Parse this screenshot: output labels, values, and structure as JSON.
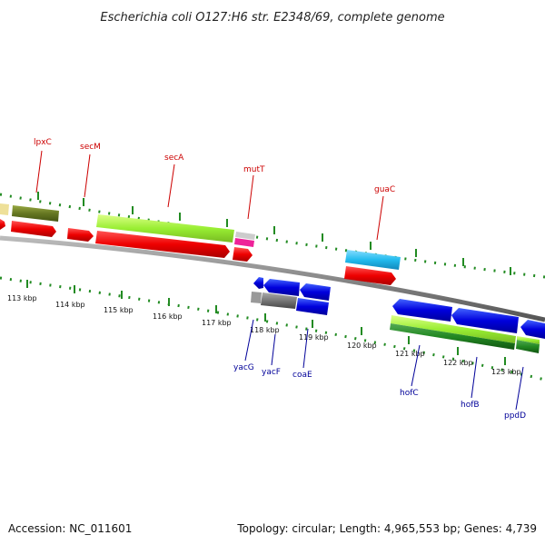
{
  "title": "Escherichia coli O127:H6 str. E2348/69, complete genome",
  "footer": {
    "accession": "Accession: NC_011601",
    "topology": "Topology: circular; Length: 4,965,553 bp; Genes: 4,739"
  },
  "scale_labels": [
    "113 kbp",
    "114 kbp",
    "115 kbp",
    "116 kbp",
    "117 kbp",
    "118 kbp",
    "119 kbp",
    "120 kbp",
    "121 kbp",
    "122 kbp",
    "123 kbp"
  ],
  "top_gene_labels": [
    "lpxC",
    "secM",
    "secA",
    "mutT",
    "guaC"
  ],
  "bottom_gene_labels": [
    "yacG",
    "yacF",
    "coaE",
    "hofC",
    "hofB",
    "ppdD"
  ],
  "colors": {
    "forward_cds": "#ee0000",
    "reverse_cds": "#0000dd",
    "top_label": "#cc0000",
    "bottom_label": "#000099",
    "tick_green": "#228b22",
    "backbone": "#888888",
    "cog_lime": "#99ee33",
    "cog_olive": "#667722",
    "cog_cyan": "#22bbee",
    "cog_magenta": "#ee2299",
    "cog_gray": "#777777",
    "cog_green": "#228822"
  }
}
